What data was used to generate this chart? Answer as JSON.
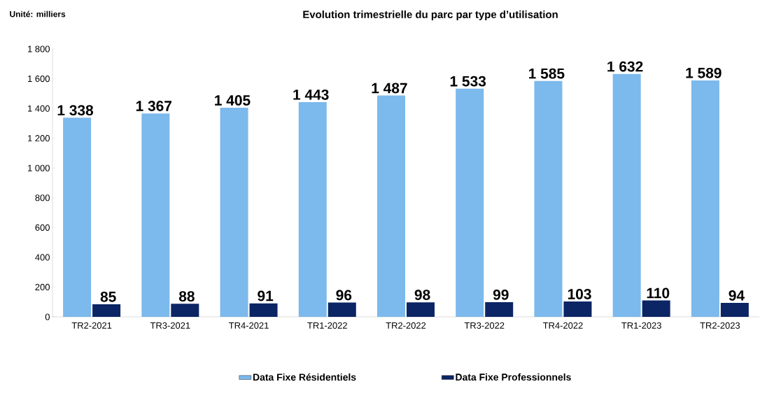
{
  "chart_data": {
    "type": "bar",
    "title": "Evolution trimestrielle du parc par type d’utilisation",
    "annotations": [
      "Unité: milliers"
    ],
    "categories": [
      "TR2-2021",
      "TR3-2021",
      "TR4-2021",
      "TR1-2022",
      "TR2-2022",
      "TR3-2022",
      "TR4-2022",
      "TR1-2023",
      "TR2-2023"
    ],
    "series": [
      {
        "name": "Data Fixe Résidentiels",
        "color": "#7cb9ec",
        "values": [
          1338,
          1367,
          1405,
          1443,
          1487,
          1533,
          1585,
          1632,
          1589
        ],
        "value_labels": [
          "1 338",
          "1 367",
          "1 405",
          "1 443",
          "1 487",
          "1 533",
          "1 585",
          "1 632",
          "1 589"
        ]
      },
      {
        "name": "Data Fixe Professionnels",
        "color": "#0b2565",
        "values": [
          85,
          88,
          91,
          96,
          98,
          99,
          103,
          110,
          94
        ],
        "value_labels": [
          "85",
          "88",
          "91",
          "96",
          "98",
          "99",
          "103",
          "110",
          "94"
        ]
      }
    ],
    "ylim": [
      0,
      1800
    ],
    "yticks": [
      0,
      200,
      400,
      600,
      800,
      {
        "value": 1000,
        "label": "1 000"
      },
      {
        "value": 1200,
        "label": "1 200"
      },
      {
        "value": 1400,
        "label": "1 400"
      },
      {
        "value": 1600,
        "label": "1 600"
      },
      {
        "value": 1800,
        "label": "1 800"
      }
    ],
    "legend": "bottom"
  }
}
